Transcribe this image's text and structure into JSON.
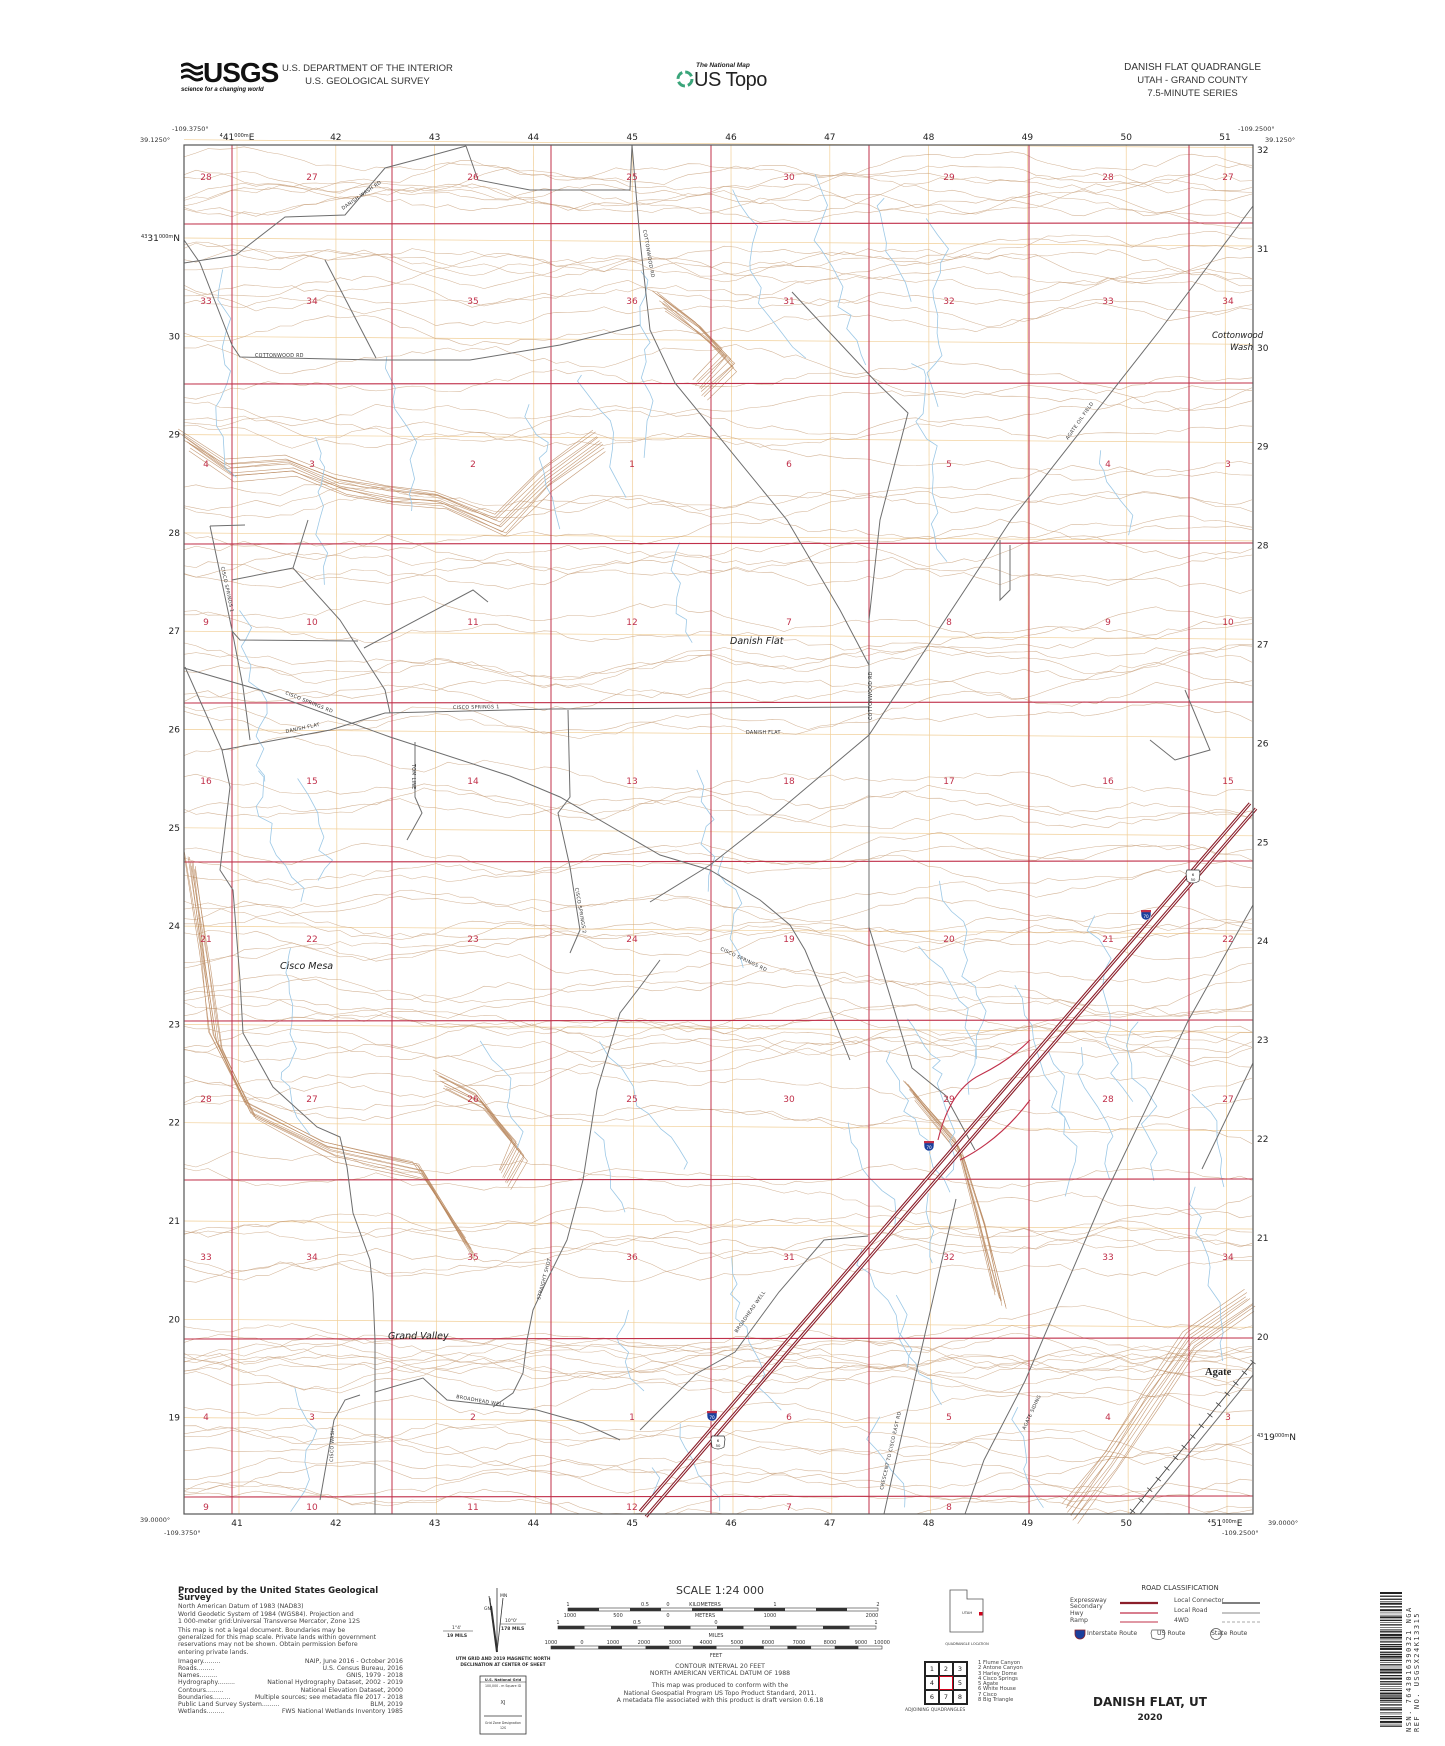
{
  "header": {
    "agency_logo": "USGS",
    "agency_tagline": "science for a changing world",
    "department": "U.S. DEPARTMENT OF THE INTERIOR",
    "survey": "U.S. GEOLOGICAL SURVEY",
    "national_map": "The National Map",
    "us_topo": "US Topo",
    "quad_title": "DANISH FLAT QUADRANGLE",
    "state_county": "UTAH - GRAND COUNTY",
    "series": "7.5-MINUTE SERIES"
  },
  "corners": {
    "nw_lon": "-109.3750°",
    "nw_lat": "39.1250°",
    "ne_lon": "-109.2500°",
    "ne_lat": "39.1250°",
    "sw_lat": "39.0000°",
    "sw_lon": "-109.3750°",
    "se_lon": "-109.2500°",
    "se_lat": "39.0000°"
  },
  "utm": {
    "easting_top": [
      "41",
      "42",
      "43",
      "44",
      "45",
      "46",
      "47",
      "48",
      "49",
      "50",
      "51"
    ],
    "easting_bottom": [
      "41",
      "42",
      "43",
      "44",
      "45",
      "46",
      "47",
      "48",
      "49",
      "50",
      "51"
    ],
    "easting_prefix": "4",
    "easting_suffix": "000m",
    "easting_unit": "E",
    "northing_left": [
      "31",
      "30",
      "29",
      "28",
      "27",
      "26",
      "25",
      "24",
      "23",
      "22",
      "21",
      "20",
      "19"
    ],
    "northing_right": [
      "32",
      "31",
      "30",
      "29",
      "28",
      "27",
      "26",
      "25",
      "24",
      "23",
      "22",
      "21",
      "20"
    ],
    "northing_prefix_top": "43",
    "northing_prefix_bottom": "43",
    "northing_suffix": "000m",
    "northing_unit": "N"
  },
  "sections": {
    "rows": [
      [
        "28",
        "27",
        "26",
        "25",
        "30",
        "29",
        "28",
        "27"
      ],
      [
        "33",
        "34",
        "35",
        "36",
        "31",
        "32",
        "33",
        "34"
      ],
      [
        "4",
        "3",
        "2",
        "1",
        "6",
        "5",
        "4",
        "3"
      ],
      [
        "9",
        "10",
        "11",
        "12",
        "7",
        "8",
        "9",
        "10"
      ],
      [
        "16",
        "15",
        "14",
        "13",
        "18",
        "17",
        "16",
        "15"
      ],
      [
        "21",
        "22",
        "23",
        "24",
        "19",
        "20",
        "21",
        "22"
      ],
      [
        "28",
        "27",
        "26",
        "25",
        "30",
        "29",
        "28",
        "27"
      ],
      [
        "33",
        "34",
        "35",
        "36",
        "31",
        "32",
        "33",
        "34"
      ],
      [
        "4",
        "3",
        "2",
        "1",
        "6",
        "5",
        "4",
        "3"
      ],
      [
        "9",
        "10",
        "11",
        "12",
        "7",
        "8"
      ]
    ],
    "color": "#c0304a"
  },
  "places": {
    "danish_flat": "Danish Flat",
    "cisco_mesa": "Cisco Mesa",
    "grand_valley": "Grand Valley",
    "agate": "Agate",
    "cottonwood_wash_1": "Cottonwood",
    "cottonwood_wash_2": "Wash"
  },
  "road_labels": {
    "danish_wash_rd": "DANISH WASH RD",
    "cottonwood_rd_west": "COTTONWOOD RD",
    "cottonwood_rd_north": "COTTONWOOD RD",
    "cottonwood_rd_central": "COTTONWOOD RD",
    "cisco_springs_1_vertical": "CISCO SPRINGS 1",
    "cisco_springs_1": "CISCO SPRINGS 1",
    "cisco_springs_rd_west": "CISCO SPRINGS RD",
    "cisco_springs_rd_east": "CISCO SPRINGS RD",
    "danish_flat_west": "DANISH FLAT",
    "danish_flat_east": "DANISH FLAT",
    "tom_line": "TOM LINE",
    "cisco_springs_2": "CISCO SPRINGS 2",
    "agate_oil_field": "AGATE OIL FIELD",
    "straight_shot": "STRAIGHT SHOT",
    "broadhead_well_lower": "BROADHEAD WELL",
    "broadhead_well_diag": "BROADHEAD WELL",
    "crescent_cisco_east": "CRESCENT TO CISCO EAST RD",
    "agate_siding": "AGATE SIDING",
    "cisco_wash": "CISCO WASH"
  },
  "shields": {
    "interstate": "70",
    "us_route_top": "6",
    "us_route_bottom": "50"
  },
  "colors": {
    "section_line": "#c0304a",
    "interstate": "#8b1e2a",
    "road": "#6e6e6e",
    "contour": "#c9a27e",
    "stream": "#9cc8e6",
    "utm_grid": "#f1cf98"
  },
  "footer": {
    "produced_title": "Produced by the United States Geological Survey",
    "datum_lines": [
      "North American Datum of 1983 (NAD83)",
      "World Geodetic System of 1984 (WGS84). Projection and",
      "1 000-meter grid:Universal Transverse Mercator, Zone 12S"
    ],
    "legal_lines": [
      "This map is not a legal document. Boundaries may be",
      "generalized for this map scale. Private lands within government",
      "reservations may not be shown. Obtain permission before",
      "entering private lands."
    ],
    "credits": [
      {
        "label": "Imagery",
        "source": "NAIP, June 2016 - October 2016"
      },
      {
        "label": "Roads",
        "source": "U.S. Census Bureau, 2016"
      },
      {
        "label": "Names",
        "source": "GNIS, 1979 - 2018"
      },
      {
        "label": "Hydrography",
        "source": "National Hydrography Dataset, 2002 - 2019"
      },
      {
        "label": "Contours",
        "source": "National Elevation Dataset, 2000"
      },
      {
        "label": "Boundaries",
        "source": "Multiple sources; see metadata file 2017 - 2018"
      },
      {
        "label": "Public Land Survey System",
        "source": "BLM, 2019"
      },
      {
        "label": "Wetlands",
        "source": "FWS National Wetlands Inventory 1985"
      }
    ],
    "declination": {
      "mn": "MN",
      "gn": "GN",
      "grid_angle": "1°4'",
      "grid_mils": "19 MILS",
      "mag_angle": "10°0'",
      "mag_mils": "178 MILS",
      "caption_1": "UTM GRID AND 2019 MAGNETIC NORTH",
      "caption_2": "DECLINATION AT CENTER OF SHEET"
    },
    "national_grid": {
      "title": "U.S. National Grid",
      "square_label": "100,000 - m Square ID",
      "square_id": "XJ",
      "zone_label": "Grid Zone Designation",
      "zone": "12S"
    },
    "scale": {
      "title": "SCALE 1:24 000",
      "km_ticks": [
        "1",
        "0.5",
        "0",
        "1",
        "2"
      ],
      "km_unit": "KILOMETERS",
      "m_ticks": [
        "1000",
        "500",
        "0",
        "1000",
        "2000"
      ],
      "m_unit": "METERS",
      "mi_ticks": [
        "1",
        "0.5",
        "0",
        "1"
      ],
      "mi_unit": "MILES",
      "ft_ticks": [
        "1000",
        "0",
        "1000",
        "2000",
        "3000",
        "4000",
        "5000",
        "6000",
        "7000",
        "8000",
        "9000",
        "10000"
      ],
      "ft_unit": "FEET"
    },
    "contour_lines": [
      "CONTOUR INTERVAL 20 FEET",
      "NORTH AMERICAN VERTICAL DATUM OF 1988"
    ],
    "standard_lines": [
      "This map was produced to conform with the",
      "National Geospatial Program US Topo Product Standard, 2011.",
      "A metadata file associated with this product is draft version 0.6.18"
    ],
    "quad_location": {
      "state": "UTAH",
      "caption": "QUADRANGLE LOCATION"
    },
    "adjoining": {
      "cells": [
        "1",
        "2",
        "3",
        "4",
        "",
        "5",
        "6",
        "7",
        "8"
      ],
      "names": [
        "1 Flume Canyon",
        "2 Antone Canyon",
        "3 Harley Dome",
        "4 Cisco Springs",
        "5 Agate",
        "6 White House",
        "7 Cisco",
        "8 Big Triangle"
      ],
      "caption": "ADJOINING QUADRANGLES"
    },
    "road_classification": {
      "title": "ROAD CLASSIFICATION",
      "left": [
        "Expressway",
        "Secondary Hwy",
        "Ramp"
      ],
      "right": [
        "Local Connector",
        "Local Road",
        "4WD"
      ],
      "interstate_route": "Interstate Route",
      "us_route": "US Route",
      "state_route": "State Route"
    },
    "map_name": "DANISH FLAT, UT",
    "year": "2020",
    "barcode_text": "NSN. 7643016390321  NGA REF NO. USGSX24K13315"
  }
}
